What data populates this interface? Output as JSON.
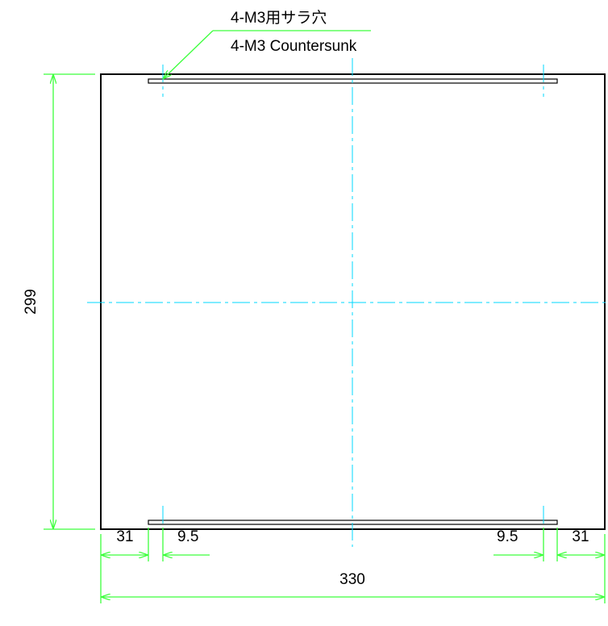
{
  "callout": {
    "line1": "4-M3用サラ穴",
    "line2": "4-M3 Countersunk"
  },
  "dimensions": {
    "height": "299",
    "width": "330",
    "left_edge_offset": "31",
    "left_hole_offset": "9.5",
    "right_hole_offset": "9.5",
    "right_edge_offset": "31"
  },
  "colors": {
    "dimension_lines": "#3cff3c",
    "center_lines": "#00d8ff",
    "outline": "#000000"
  }
}
